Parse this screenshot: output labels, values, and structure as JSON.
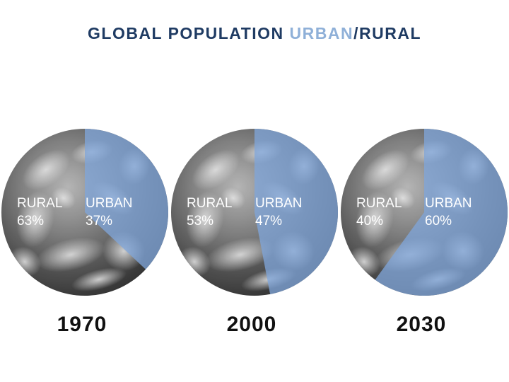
{
  "title": {
    "part1": "GLOBAL POPULATION",
    "part2": "URBAN",
    "part3": "/",
    "part4": "RURAL"
  },
  "colors": {
    "title": "#1f3b63",
    "urban_accent": "#8fb0d8",
    "urban_fill": "#7ea3d6",
    "globe_dark": "#2b2b2b",
    "globe_light": "#d9d9d9",
    "label_text": "#ffffff",
    "year_text": "#111111"
  },
  "chart_data": {
    "type": "pie",
    "title": "GLOBAL POPULATION URBAN/RURAL",
    "categories": [
      "1970",
      "2000",
      "2030"
    ],
    "series": [
      {
        "name": "RURAL",
        "values": [
          63,
          53,
          40
        ]
      },
      {
        "name": "URBAN",
        "values": [
          37,
          47,
          60
        ]
      }
    ],
    "labels": [
      {
        "year": "1970",
        "rural_label": "RURAL",
        "rural_value": "63%",
        "urban_label": "URBAN",
        "urban_value": "37%"
      },
      {
        "year": "2000",
        "rural_label": "RURAL",
        "rural_value": "53%",
        "urban_label": "URBAN",
        "urban_value": "47%"
      },
      {
        "year": "2030",
        "rural_label": "RURAL",
        "rural_value": "40%",
        "urban_label": "URBAN",
        "urban_value": "60%"
      }
    ]
  }
}
